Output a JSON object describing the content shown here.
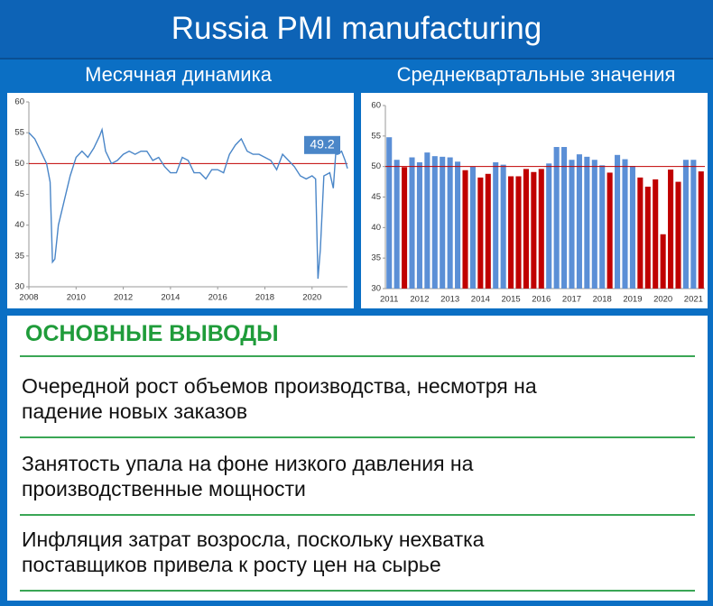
{
  "title": "Russia PMI manufacturing",
  "subtitles": [
    "Месячная динамика",
    "Среднеквартальные значения"
  ],
  "chart_data": [
    {
      "type": "line",
      "x": [
        2008,
        2008.25,
        2008.5,
        2008.75,
        2008.9,
        2009,
        2009.1,
        2009.25,
        2009.5,
        2009.75,
        2010,
        2010.25,
        2010.5,
        2010.75,
        2011,
        2011.1,
        2011.25,
        2011.5,
        2011.75,
        2012,
        2012.25,
        2012.5,
        2012.75,
        2013,
        2013.25,
        2013.5,
        2013.75,
        2014,
        2014.25,
        2014.5,
        2014.75,
        2015,
        2015.25,
        2015.5,
        2015.75,
        2016,
        2016.25,
        2016.5,
        2016.75,
        2017,
        2017.25,
        2017.5,
        2017.75,
        2018,
        2018.25,
        2018.5,
        2018.75,
        2019,
        2019.25,
        2019.5,
        2019.75,
        2020,
        2020.15,
        2020.25,
        2020.35,
        2020.5,
        2020.75,
        2020.9,
        2021,
        2021.1,
        2021.25,
        2021.4,
        2021.5
      ],
      "values": [
        55,
        54,
        52,
        50,
        47,
        34,
        34.5,
        40,
        44,
        48,
        51,
        52,
        51,
        52.5,
        54.5,
        55.5,
        52,
        50,
        50.5,
        51.5,
        52,
        51.5,
        52,
        52,
        50.5,
        51,
        49.5,
        48.5,
        48.5,
        51,
        50.5,
        48.5,
        48.5,
        47.5,
        49,
        49,
        48.5,
        51.5,
        53,
        54,
        52,
        51.5,
        51.5,
        51,
        50.5,
        49,
        51.5,
        50.5,
        49.5,
        48,
        47.5,
        48,
        47.5,
        31.3,
        36,
        48,
        48.5,
        46,
        51.5,
        51.5,
        52,
        50.5,
        49.2
      ],
      "color": "#4a86c8",
      "annotation": "49.2",
      "reference_line": {
        "value": 50,
        "color": "#c00000"
      },
      "xlim": [
        2008,
        2021.5
      ],
      "xticks": [
        2008,
        2010,
        2012,
        2014,
        2016,
        2018,
        2020
      ],
      "ylim": [
        30,
        60
      ],
      "yticks": [
        30,
        35,
        40,
        45,
        50,
        55,
        60
      ]
    },
    {
      "type": "bar",
      "categories": [
        "2011",
        null,
        null,
        null,
        "2012",
        null,
        null,
        null,
        "2013",
        null,
        null,
        null,
        "2014",
        null,
        null,
        null,
        "2015",
        null,
        null,
        null,
        "2016",
        null,
        null,
        null,
        "2017",
        null,
        null,
        null,
        "2018",
        null,
        null,
        null,
        "2019",
        null,
        null,
        null,
        "2020",
        null,
        null,
        null,
        "2021",
        null
      ],
      "values": [
        54.8,
        51.1,
        49.9,
        51.5,
        50.7,
        52.3,
        51.7,
        51.6,
        51.5,
        50.8,
        49.4,
        50.0,
        48.2,
        48.8,
        50.7,
        50.3,
        48.4,
        48.4,
        49.6,
        49.1,
        49.6,
        50.5,
        53.2,
        53.2,
        51.1,
        52.0,
        51.6,
        51.1,
        50.2,
        49.0,
        51.9,
        51.2,
        50.1,
        48.2,
        46.7,
        47.9,
        38.9,
        49.5,
        47.5,
        51.1,
        51.1,
        49.2
      ],
      "colors": [
        "#5b8fd6",
        "#5b8fd6",
        "#c00000",
        "#5b8fd6",
        "#5b8fd6",
        "#5b8fd6",
        "#5b8fd6",
        "#5b8fd6",
        "#5b8fd6",
        "#5b8fd6",
        "#c00000",
        "#5b8fd6",
        "#c00000",
        "#c00000",
        "#5b8fd6",
        "#5b8fd6",
        "#c00000",
        "#c00000",
        "#c00000",
        "#c00000",
        "#c00000",
        "#5b8fd6",
        "#5b8fd6",
        "#5b8fd6",
        "#5b8fd6",
        "#5b8fd6",
        "#5b8fd6",
        "#5b8fd6",
        "#5b8fd6",
        "#c00000",
        "#5b8fd6",
        "#5b8fd6",
        "#5b8fd6",
        "#c00000",
        "#c00000",
        "#c00000",
        "#c00000",
        "#c00000",
        "#c00000",
        "#5b8fd6",
        "#5b8fd6",
        "#c00000"
      ],
      "reference_line": {
        "value": 50,
        "color": "#c00000"
      },
      "ylim": [
        30,
        60
      ],
      "yticks": [
        30,
        35,
        40,
        45,
        50,
        55,
        60
      ]
    }
  ],
  "conclusions": {
    "heading": "ОСНОВНЫЕ ВЫВОДЫ",
    "items": [
      [
        "Очередной рост объемов производства, несмотря на",
        "падение новых заказов"
      ],
      [
        "Занятость упала на фоне низкого давления на",
        "производственные мощности"
      ],
      [
        "Инфляция затрат возросла, поскольку нехватка",
        "поставщиков привела к росту цен на сырье"
      ]
    ]
  }
}
